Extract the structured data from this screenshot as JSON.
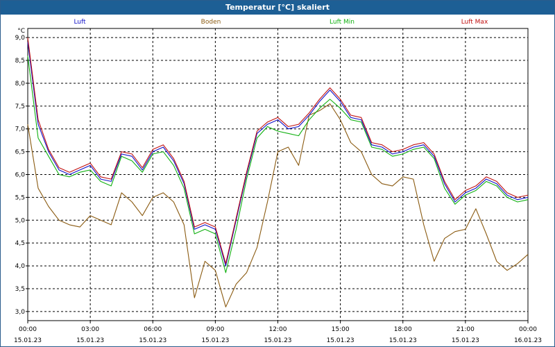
{
  "title": "Temperatur [°C] skaliert",
  "colors": {
    "titlebar": "#1d5f95",
    "luft": "#1010c8",
    "boden": "#8a5a10",
    "luft_min": "#10b010",
    "luft_max": "#c01010"
  },
  "chart_data": {
    "type": "line",
    "title": "Temperatur [°C] skaliert",
    "ylabel": "°C",
    "xlabel": "",
    "ylim": [
      2.8,
      9.2
    ],
    "grid": true,
    "legend_position": "top",
    "y_ticks": [
      "3,0",
      "3,5",
      "4,0",
      "4,5",
      "5,0",
      "5,5",
      "6,0",
      "6,5",
      "7,0",
      "7,5",
      "8,0",
      "8,5",
      "9,0"
    ],
    "x_ticks": [
      {
        "time": "00:00",
        "date": "15.01.23"
      },
      {
        "time": "03:00",
        "date": "15.01.23"
      },
      {
        "time": "06:00",
        "date": "15.01.23"
      },
      {
        "time": "09:00",
        "date": "15.01.23"
      },
      {
        "time": "12:00",
        "date": "15.01.23"
      },
      {
        "time": "15:00",
        "date": "15.01.23"
      },
      {
        "time": "18:00",
        "date": "15.01.23"
      },
      {
        "time": "21:00",
        "date": "15.01.23"
      },
      {
        "time": "00:00",
        "date": "16.01.23"
      }
    ],
    "x_hours": [
      0,
      0.5,
      1,
      1.5,
      2,
      2.5,
      3,
      3.5,
      4,
      4.5,
      5,
      5.5,
      6,
      6.5,
      7,
      7.5,
      8,
      8.5,
      9,
      9.5,
      10,
      10.5,
      11,
      11.5,
      12,
      12.5,
      13,
      13.5,
      14,
      14.5,
      15,
      15.5,
      16,
      16.5,
      17,
      17.5,
      18,
      18.5,
      19,
      19.5,
      20,
      20.5,
      21,
      21.5,
      22,
      22.5,
      23,
      23.5,
      24
    ],
    "series": [
      {
        "name": "Luft",
        "color_key": "luft",
        "values": [
          8.9,
          7.1,
          6.5,
          6.1,
          6.0,
          6.1,
          6.2,
          5.9,
          5.85,
          6.45,
          6.4,
          6.1,
          6.5,
          6.6,
          6.3,
          5.8,
          4.8,
          4.9,
          4.8,
          4.0,
          5.0,
          6.0,
          6.9,
          7.1,
          7.2,
          7.0,
          7.05,
          7.3,
          7.6,
          7.85,
          7.6,
          7.25,
          7.2,
          6.65,
          6.6,
          6.45,
          6.5,
          6.6,
          6.65,
          6.4,
          5.8,
          5.4,
          5.6,
          5.7,
          5.9,
          5.8,
          5.55,
          5.45,
          5.5
        ]
      },
      {
        "name": "Boden",
        "color_key": "boden",
        "values": [
          7.1,
          5.7,
          5.3,
          5.0,
          4.9,
          4.85,
          5.1,
          5.0,
          4.9,
          5.6,
          5.4,
          5.1,
          5.5,
          5.6,
          5.4,
          4.9,
          3.3,
          4.1,
          3.9,
          3.1,
          3.6,
          3.85,
          4.4,
          5.4,
          6.5,
          6.6,
          6.2,
          7.3,
          7.4,
          7.55,
          7.2,
          6.7,
          6.5,
          6.0,
          5.8,
          5.75,
          5.95,
          5.9,
          4.9,
          4.1,
          4.6,
          4.75,
          4.8,
          5.25,
          4.7,
          4.1,
          3.9,
          4.05,
          4.25
        ]
      },
      {
        "name": "Luft Min",
        "color_key": "luft_min",
        "values": [
          8.6,
          6.8,
          6.4,
          6.0,
          5.95,
          6.05,
          6.1,
          5.85,
          5.75,
          6.4,
          6.3,
          6.05,
          6.45,
          6.5,
          6.2,
          5.7,
          4.7,
          4.8,
          4.7,
          3.85,
          4.8,
          5.9,
          6.8,
          7.05,
          6.95,
          6.9,
          6.85,
          7.2,
          7.45,
          7.65,
          7.45,
          7.2,
          7.15,
          6.6,
          6.55,
          6.4,
          6.45,
          6.55,
          6.6,
          6.35,
          5.7,
          5.35,
          5.55,
          5.65,
          5.85,
          5.75,
          5.5,
          5.4,
          5.45
        ]
      },
      {
        "name": "Luft Max",
        "color_key": "luft_max",
        "values": [
          9.0,
          7.2,
          6.55,
          6.15,
          6.05,
          6.15,
          6.25,
          5.95,
          5.9,
          6.5,
          6.45,
          6.15,
          6.55,
          6.65,
          6.35,
          5.85,
          4.85,
          4.95,
          4.85,
          4.05,
          5.05,
          6.05,
          6.95,
          7.15,
          7.25,
          7.05,
          7.1,
          7.35,
          7.65,
          7.9,
          7.65,
          7.3,
          7.25,
          6.7,
          6.65,
          6.5,
          6.55,
          6.65,
          6.7,
          6.45,
          5.85,
          5.45,
          5.65,
          5.75,
          5.95,
          5.85,
          5.6,
          5.5,
          5.55
        ]
      }
    ]
  }
}
